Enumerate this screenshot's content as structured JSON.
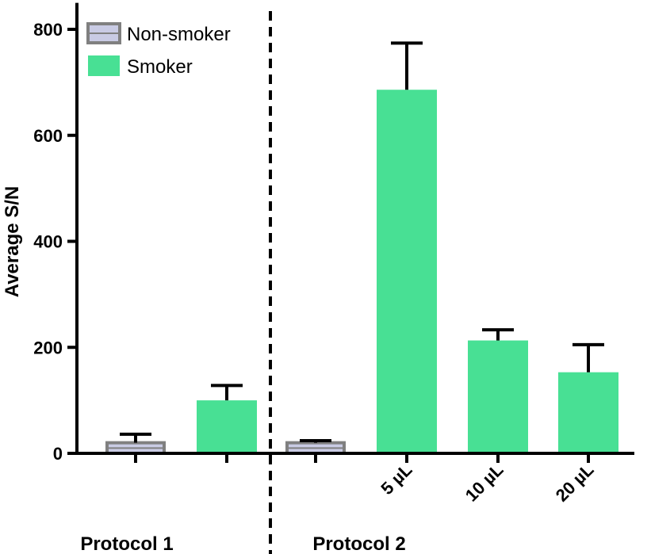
{
  "chart_data": {
    "type": "bar",
    "title": "",
    "xlabel": "",
    "ylabel": "Average S/N",
    "ylim": [
      0,
      850
    ],
    "yticks": [
      0,
      200,
      400,
      600,
      800
    ],
    "series": [
      {
        "name": "Non-smoker",
        "color": "#c9cbe4",
        "edge": "#808080"
      },
      {
        "name": "Smoker",
        "color": "#48e094",
        "edge": "#48e094"
      }
    ],
    "bars": [
      {
        "series": "Non-smoker",
        "group": "Protocol 1",
        "label": "",
        "value": 20,
        "error": 16
      },
      {
        "series": "Smoker",
        "group": "Protocol 1",
        "label": "",
        "value": 100,
        "error": 28
      },
      {
        "series": "Non-smoker",
        "group": "Protocol 2",
        "label": "",
        "value": 20,
        "error": 4
      },
      {
        "series": "Smoker",
        "group": "Protocol 2",
        "label": "5 µL",
        "value": 686,
        "error": 88
      },
      {
        "series": "Smoker",
        "group": "Protocol 2",
        "label": "10 µL",
        "value": 213,
        "error": 20
      },
      {
        "series": "Smoker",
        "group": "Protocol 2",
        "label": "20 µL",
        "value": 153,
        "error": 52
      }
    ],
    "groups": [
      "Protocol 1",
      "Protocol 2"
    ],
    "legend": [
      "Non-smoker",
      "Smoker"
    ],
    "legend_position": "top-left"
  }
}
